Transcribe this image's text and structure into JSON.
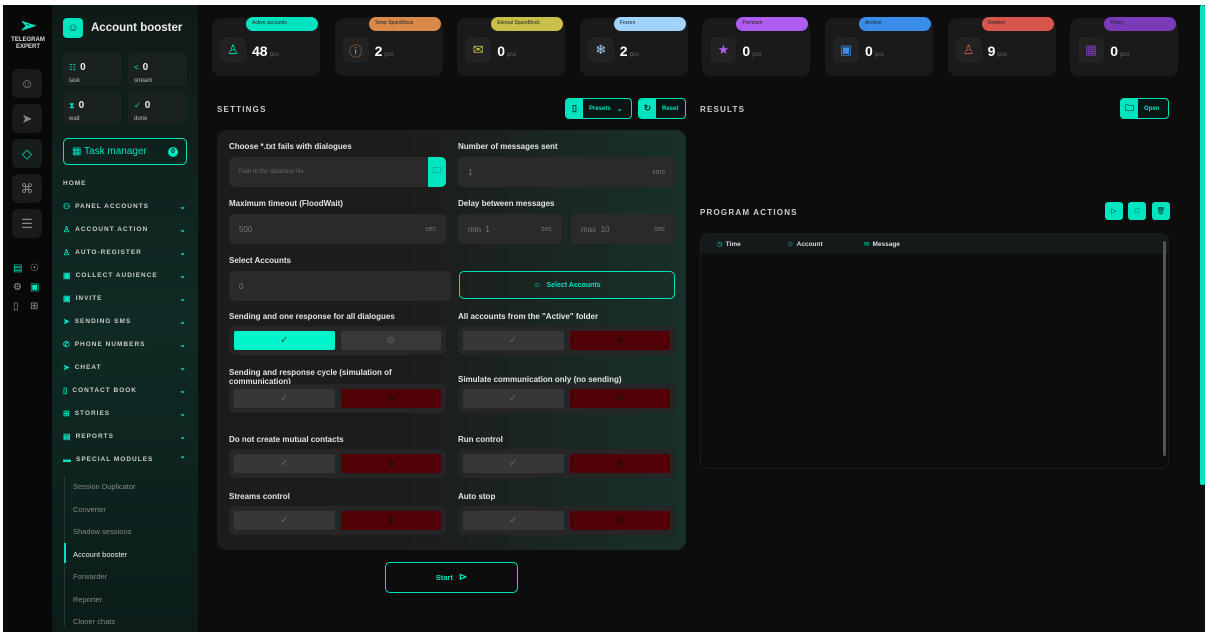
{
  "app": {
    "logo_line1": "TELEGRAM",
    "logo_line2": "EXPERT"
  },
  "rail": {
    "icons": [
      "user-icon",
      "send-icon",
      "diamond-icon",
      "command-icon",
      "database-icon"
    ]
  },
  "sidebar": {
    "title": "Account booster",
    "counters": [
      {
        "value": "0",
        "label": "task"
      },
      {
        "value": "0",
        "label": "stream"
      },
      {
        "value": "0",
        "label": "wait"
      },
      {
        "value": "0",
        "label": "done"
      }
    ],
    "task_manager": {
      "label": "Task manager",
      "count": "0"
    },
    "home": "HOME",
    "items": [
      {
        "label": "PANEL ACCOUNTS"
      },
      {
        "label": "ACCOUNT ACTION"
      },
      {
        "label": "AUTO-REGISTER"
      },
      {
        "label": "COLLECT AUDIENCE"
      },
      {
        "label": "INVITE"
      },
      {
        "label": "SENDING SMS"
      },
      {
        "label": "PHONE NUMBERS"
      },
      {
        "label": "CHEAT"
      },
      {
        "label": "CONTACT BOOK"
      },
      {
        "label": "STORIES"
      },
      {
        "label": "REPORTS"
      },
      {
        "label": "SPECIAL MODULES"
      }
    ],
    "sub_items": [
      "Session Duplicator",
      "Converter",
      "Shadow sessions",
      "Account booster",
      "Forwarder",
      "Reporter",
      "Cloner chats"
    ],
    "active_sub": "Account booster"
  },
  "stats": [
    {
      "label": "Active accounts",
      "value": "48",
      "unit": "pcs",
      "color": "#00e5c0"
    },
    {
      "label": "Temp SpamBlock",
      "value": "2",
      "unit": "pcs",
      "color": "#d98a4a"
    },
    {
      "label": "Eternal SpamBlock",
      "value": "0",
      "unit": "pcs",
      "color": "#c9c04a"
    },
    {
      "label": "Frozen",
      "value": "2",
      "unit": "pcs",
      "color": "#9fd4ff"
    },
    {
      "label": "Premium",
      "value": "0",
      "unit": "pcs",
      "color": "#b05cf0"
    },
    {
      "label": "Archive",
      "value": "0",
      "unit": "pcs",
      "color": "#3a8de8"
    },
    {
      "label": "Deleted",
      "value": "9",
      "unit": "pcs",
      "color": "#d9544a"
    },
    {
      "label": "Proxy",
      "value": "0",
      "unit": "pcs",
      "color": "#7a3aba"
    }
  ],
  "settings": {
    "title": "SETTINGS",
    "presets": "Presets",
    "reset": "Reset",
    "file_label": "Choose *.txt fails with dialogues",
    "file_placeholder": "Path to the database file",
    "messages_label": "Number of messages sent",
    "messages_value": "1",
    "messages_unit": "sms",
    "timeout_label": "Maximum timeout (FloodWait)",
    "timeout_value": "500",
    "timeout_unit": "sec",
    "delay_label": "Delay between messages",
    "delay_min_label": "min",
    "delay_min": "1",
    "delay_max_label": "max",
    "delay_max": "10",
    "delay_unit": "sec",
    "select_label": "Select Accounts",
    "select_value": "0",
    "select_button": "Select Accounts",
    "toggles": [
      {
        "label": "Sending and one response for all dialogues",
        "on": true
      },
      {
        "label": "All accounts from the \"Active\" folder",
        "on": false
      },
      {
        "label": "Sending and response cycle (simulation of communication)",
        "on": false
      },
      {
        "label": "Simulate communication only (no sending)",
        "on": false
      },
      {
        "label": "Do not create mutual contacts",
        "on": false
      },
      {
        "label": "Run control",
        "on": false
      },
      {
        "label": "Streams control",
        "on": false
      },
      {
        "label": "Auto stop",
        "on": false
      }
    ],
    "start": "Start"
  },
  "results": {
    "title": "RESULTS",
    "open": "Open"
  },
  "actions": {
    "title": "PROGRAM ACTIONS",
    "columns": [
      "Time",
      "Account",
      "Message"
    ]
  }
}
